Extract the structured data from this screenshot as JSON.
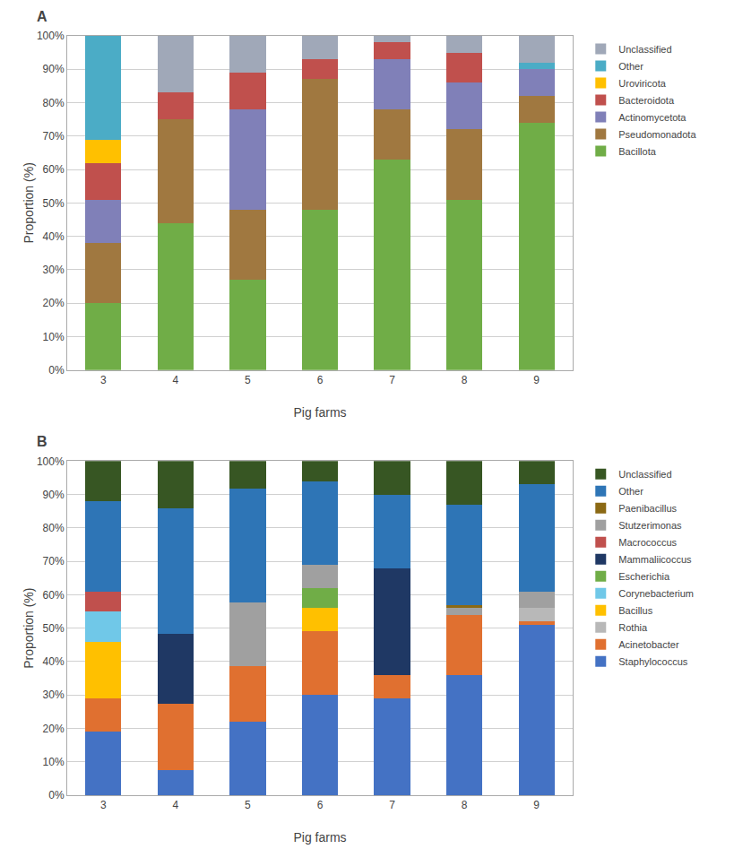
{
  "chart_data": [
    {
      "type": "bar",
      "stacked": true,
      "annotations": [
        "A"
      ],
      "xlabel": "Pig farms",
      "ylabel": "Proportion (%)",
      "categories": [
        "3",
        "4",
        "5",
        "6",
        "7",
        "8",
        "9"
      ],
      "series": [
        {
          "name": "Bacillota",
          "color": "#70ad47",
          "values": [
            20,
            44,
            27,
            48,
            63,
            51,
            74
          ]
        },
        {
          "name": "Pseudomonadota",
          "color": "#a07840",
          "values": [
            18,
            31,
            21,
            39,
            15,
            21,
            8
          ]
        },
        {
          "name": "Actinomycetota",
          "color": "#8080b8",
          "values": [
            13,
            0,
            30,
            0,
            15,
            14,
            8
          ]
        },
        {
          "name": "Bacteroidota",
          "color": "#c0504d",
          "values": [
            11,
            8,
            11,
            6,
            5,
            9,
            0
          ]
        },
        {
          "name": "Uroviricota",
          "color": "#ffc000",
          "values": [
            7,
            0,
            0,
            0,
            0,
            0,
            0
          ]
        },
        {
          "name": "Other",
          "color": "#4bacc6",
          "values": [
            31,
            0,
            0,
            0,
            0,
            0,
            2
          ]
        },
        {
          "name": "Unclassified",
          "color": "#a0a8b8",
          "values": [
            0,
            17,
            11,
            7,
            2,
            5,
            8
          ]
        }
      ],
      "ylim": [
        0,
        100
      ],
      "yticks": [
        {
          "value": 0,
          "label": "0%"
        },
        {
          "value": 10,
          "label": "10%"
        },
        {
          "value": 20,
          "label": "20%"
        },
        {
          "value": 30,
          "label": "30%"
        },
        {
          "value": 40,
          "label": "40%"
        },
        {
          "value": 50,
          "label": "50%"
        },
        {
          "value": 60,
          "label": "60%"
        },
        {
          "value": 70,
          "label": "70%"
        },
        {
          "value": 80,
          "label": "80%"
        },
        {
          "value": 90,
          "label": "90%"
        },
        {
          "value": 100,
          "label": "100%"
        }
      ],
      "grid": true,
      "legend": "right"
    },
    {
      "type": "bar",
      "stacked": true,
      "annotations": [
        "B"
      ],
      "xlabel": "Pig farms",
      "ylabel": "Proportion (%)",
      "categories": [
        "3",
        "4",
        "5",
        "6",
        "7",
        "8",
        "9"
      ],
      "series": [
        {
          "name": "Staphylococcus",
          "color": "#4472c4",
          "values": [
            19,
            7.5,
            22.018349,
            30,
            29,
            36,
            51
          ]
        },
        {
          "name": "Acinetobacter",
          "color": "#e07030",
          "values": [
            10,
            20,
            16.513761,
            19,
            7,
            18,
            1
          ]
        },
        {
          "name": "Rothia",
          "color": "#b8b8b8",
          "values": [
            0,
            0,
            0,
            0,
            0,
            0,
            4
          ]
        },
        {
          "name": "Bacillus",
          "color": "#ffc000",
          "values": [
            17,
            0,
            0,
            7,
            0,
            0,
            0
          ]
        },
        {
          "name": "Corynebacterium",
          "color": "#70c8e8",
          "values": [
            9,
            0,
            0,
            0,
            0,
            0,
            0
          ]
        },
        {
          "name": "Escherichia",
          "color": "#70ad47",
          "values": [
            0,
            0,
            0,
            6,
            0,
            0,
            0
          ]
        },
        {
          "name": "Mammaliicoccus",
          "color": "#1f3864",
          "values": [
            0,
            20.833333,
            0,
            0,
            32,
            0,
            0
          ]
        },
        {
          "name": "Macrococcus",
          "color": "#c0504d",
          "values": [
            6,
            0,
            0,
            0,
            0,
            0,
            0
          ]
        },
        {
          "name": "Stutzerimonas",
          "color": "#a0a0a0",
          "values": [
            0,
            0,
            19.266055,
            7,
            0,
            2,
            5
          ]
        },
        {
          "name": "Paenibacillus",
          "color": "#8B6914",
          "values": [
            0,
            0,
            0,
            0,
            0,
            1,
            0
          ]
        },
        {
          "name": "Other",
          "color": "#2e75b6",
          "values": [
            27,
            37.5,
            33.944954,
            25,
            22,
            30,
            32
          ]
        },
        {
          "name": "Unclassified",
          "color": "#375623",
          "values": [
            12,
            14.166667,
            8.256881,
            6,
            10,
            13,
            7
          ]
        }
      ],
      "ylim": [
        0,
        100
      ],
      "yticks": [
        {
          "value": 0,
          "label": "0%"
        },
        {
          "value": 10,
          "label": "10%"
        },
        {
          "value": 20,
          "label": "20%"
        },
        {
          "value": 30,
          "label": "30%"
        },
        {
          "value": 40,
          "label": "40%"
        },
        {
          "value": 50,
          "label": "50%"
        },
        {
          "value": 60,
          "label": "60%"
        },
        {
          "value": 70,
          "label": "70%"
        },
        {
          "value": 80,
          "label": "80%"
        },
        {
          "value": 90,
          "label": "90%"
        },
        {
          "value": 100,
          "label": "100%"
        }
      ],
      "grid": true,
      "legend": "right"
    }
  ]
}
